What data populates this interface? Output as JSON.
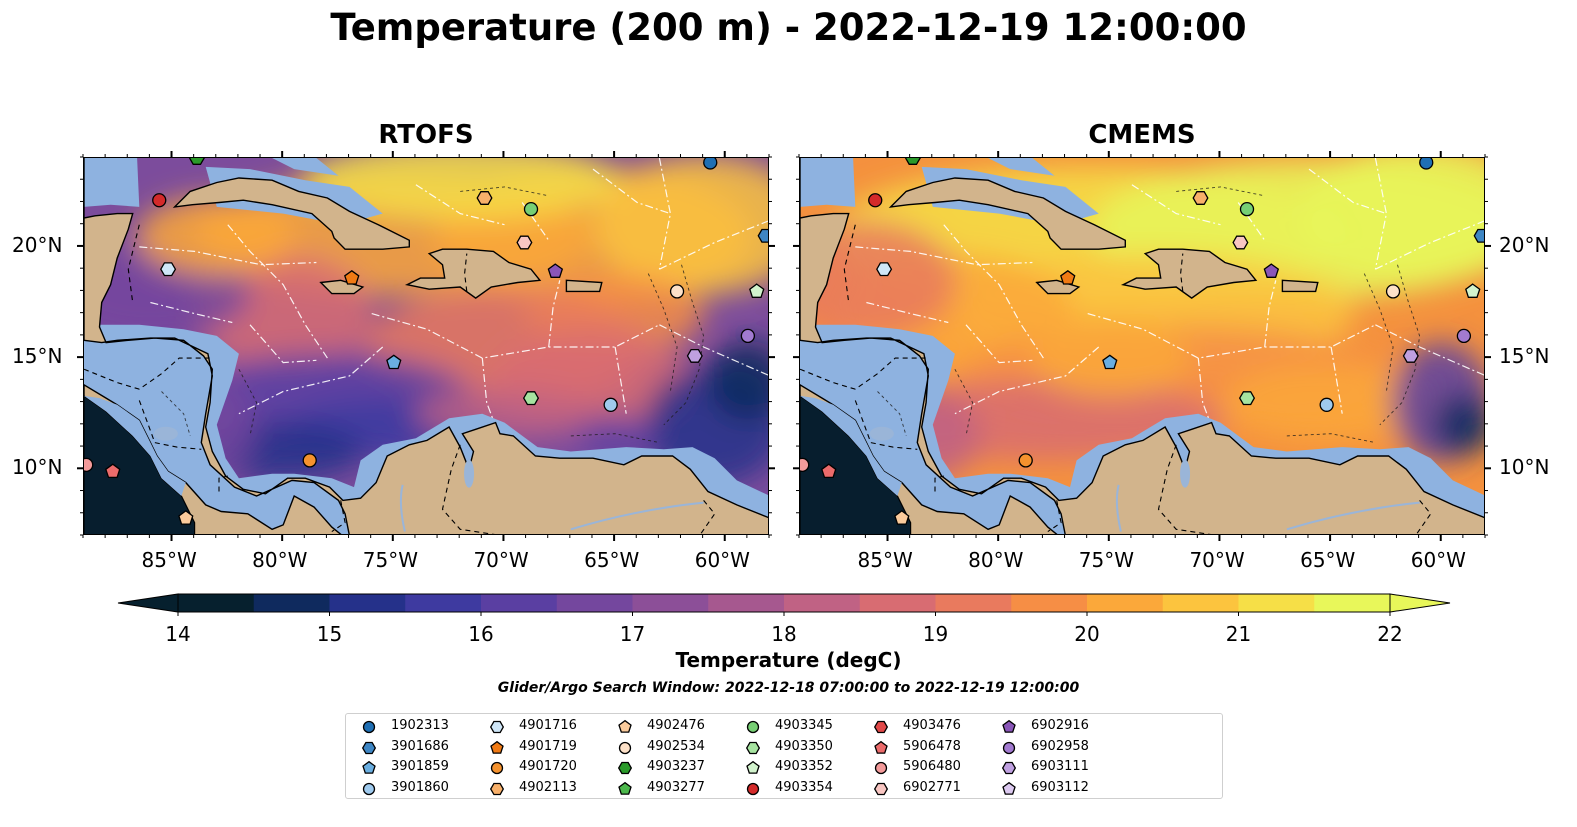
{
  "title": "Temperature (200 m) - 2022-12-19 12:00:00",
  "panels": [
    {
      "title": "RTOFS"
    },
    {
      "title": "CMEMS"
    }
  ],
  "axes": {
    "lon_labels": [
      "85°W",
      "80°W",
      "75°W",
      "70°W",
      "65°W",
      "60°W"
    ],
    "lat_labels": [
      "20°N",
      "15°N",
      "10°N"
    ],
    "lon_range": [
      -89,
      -58
    ],
    "lat_range": [
      7,
      24
    ]
  },
  "colorbar": {
    "label": "Temperature (degC)",
    "ticks": [
      "14",
      "15",
      "16",
      "17",
      "18",
      "19",
      "20",
      "21",
      "22"
    ],
    "range": [
      14,
      22
    ],
    "colors": [
      "#06202e",
      "#0f2a5e",
      "#25318a",
      "#3e3aa0",
      "#5a3fa2",
      "#74479e",
      "#8c4f98",
      "#a6588f",
      "#c06284",
      "#d86c72",
      "#e97a5e",
      "#f68e45",
      "#fba83a",
      "#fcc43e",
      "#f6df47",
      "#e8f75a"
    ]
  },
  "search_window": "Glider/Argo Search Window: 2022-12-18 07:00:00 to 2022-12-19 12:00:00",
  "legend": [
    {
      "id": "1902313",
      "marker": "circle",
      "color": "#1f6fb4"
    },
    {
      "id": "3901686",
      "marker": "hexagon",
      "color": "#3e86c4"
    },
    {
      "id": "3901859",
      "marker": "pentagon",
      "color": "#6aaee0"
    },
    {
      "id": "3901860",
      "marker": "circle",
      "color": "#9fcaee"
    },
    {
      "id": "4901716",
      "marker": "hexagon",
      "color": "#cfe6f7"
    },
    {
      "id": "4901719",
      "marker": "pentagon",
      "color": "#f07a14"
    },
    {
      "id": "4901720",
      "marker": "circle",
      "color": "#f5922e"
    },
    {
      "id": "4902113",
      "marker": "hexagon",
      "color": "#f8b06a"
    },
    {
      "id": "4902476",
      "marker": "pentagon",
      "color": "#fbcb9c"
    },
    {
      "id": "4902534",
      "marker": "circle",
      "color": "#fde1c8"
    },
    {
      "id": "4903237",
      "marker": "hexagon",
      "color": "#2a9a2a"
    },
    {
      "id": "4903277",
      "marker": "pentagon",
      "color": "#4cb84c"
    },
    {
      "id": "4903345",
      "marker": "circle",
      "color": "#77cf74"
    },
    {
      "id": "4903350",
      "marker": "hexagon",
      "color": "#a6e3a0"
    },
    {
      "id": "4903352",
      "marker": "pentagon",
      "color": "#d2f3cd"
    },
    {
      "id": "4903354",
      "marker": "circle",
      "color": "#d42a2a"
    },
    {
      "id": "4903476",
      "marker": "hexagon",
      "color": "#e04848"
    },
    {
      "id": "5906478",
      "marker": "pentagon",
      "color": "#eb6b6b"
    },
    {
      "id": "5906480",
      "marker": "circle",
      "color": "#f39a9a"
    },
    {
      "id": "6902771",
      "marker": "hexagon",
      "color": "#f8c6c2"
    },
    {
      "id": "6902916",
      "marker": "pentagon",
      "color": "#8a56b8"
    },
    {
      "id": "6902958",
      "marker": "circle",
      "color": "#a27ad0"
    },
    {
      "id": "6903111",
      "marker": "hexagon",
      "color": "#bfa0e0"
    },
    {
      "id": "6903112",
      "marker": "pentagon",
      "color": "#dcc9f0"
    }
  ],
  "floats": [
    {
      "id": "1902313",
      "lon": -60.7,
      "lat": 23.8
    },
    {
      "id": "3901686",
      "lon": -58.2,
      "lat": 20.5
    },
    {
      "id": "3901859",
      "lon": -75.0,
      "lat": 14.8
    },
    {
      "id": "3901860",
      "lon": -65.2,
      "lat": 12.9
    },
    {
      "id": "4901716",
      "lon": -85.2,
      "lat": 19.0
    },
    {
      "id": "4901719",
      "lon": -76.9,
      "lat": 18.6
    },
    {
      "id": "4901720",
      "lon": -78.8,
      "lat": 10.4
    },
    {
      "id": "4902113",
      "lon": -70.9,
      "lat": 22.2
    },
    {
      "id": "4902476",
      "lon": -84.4,
      "lat": 7.8
    },
    {
      "id": "4902534",
      "lon": -62.2,
      "lat": 18.0
    },
    {
      "id": "4903237",
      "lon": -83.9,
      "lat": 24.0
    },
    {
      "id": "4903345",
      "lon": -68.8,
      "lat": 21.7
    },
    {
      "id": "4903350",
      "lon": -68.8,
      "lat": 13.2
    },
    {
      "id": "4903352",
      "lon": -58.6,
      "lat": 18.0
    },
    {
      "id": "4903354",
      "lon": -85.6,
      "lat": 22.1
    },
    {
      "id": "5906478",
      "lon": -87.7,
      "lat": 9.9
    },
    {
      "id": "5906480",
      "lon": -88.9,
      "lat": 10.2
    },
    {
      "id": "6902771",
      "lon": -69.1,
      "lat": 20.2
    },
    {
      "id": "6902916",
      "lon": -67.7,
      "lat": 18.9
    },
    {
      "id": "6902958",
      "lon": -59.0,
      "lat": 16.0
    },
    {
      "id": "6903111",
      "lon": -61.4,
      "lat": 15.1
    }
  ]
}
